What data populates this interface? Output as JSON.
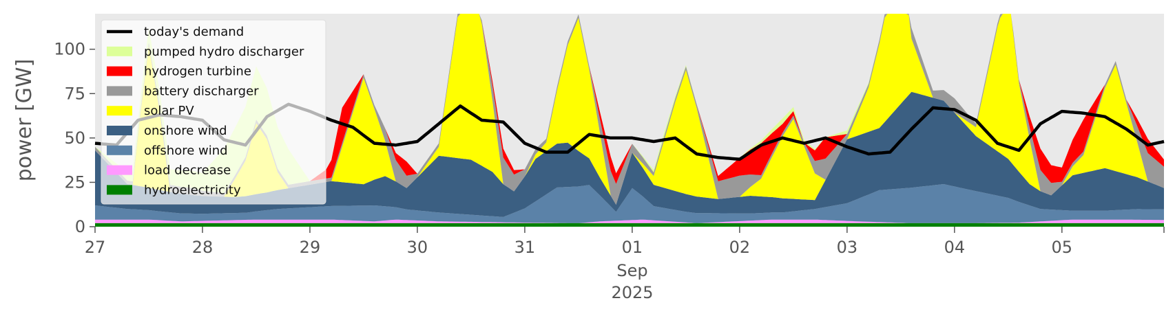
{
  "chart_data": {
    "type": "area",
    "ylabel": "power [GW]",
    "ylim": [
      0,
      120
    ],
    "y_ticks": [
      0,
      25,
      50,
      75,
      100
    ],
    "x_ticks": [
      "27",
      "28",
      "29",
      "30",
      "31",
      "01",
      "02",
      "03",
      "04",
      "05"
    ],
    "x_month_label": "Sep",
    "x_year_label": "2025",
    "x_range_days": [
      0,
      9.95
    ],
    "legend_position": "upper-left",
    "background_color": "#e9e9e9",
    "stacked_series": [
      {
        "name": "hydroelectricity",
        "color": "#008000",
        "x": [
          0,
          9.95
        ],
        "values": [
          2,
          2
        ]
      },
      {
        "name": "load decrease",
        "color": "#ff99ff",
        "x": [
          0,
          0.5,
          0.8,
          1.5,
          2.2,
          2.6,
          2.8,
          3.2,
          4.0,
          4.5,
          4.7,
          5.1,
          5.6,
          6.3,
          6.7,
          7.1,
          7.6,
          8.1,
          8.6,
          9.1,
          9.5,
          9.95
        ],
        "values": [
          2,
          2,
          1,
          2,
          2,
          1,
          2,
          1,
          0.3,
          0,
          1,
          2,
          0,
          2,
          2,
          1,
          0,
          0,
          0.3,
          2,
          2,
          1.8
        ]
      },
      {
        "name": "offshore wind",
        "color": "#5b82a8",
        "x": [
          0,
          0.3,
          0.6,
          1.0,
          1.4,
          1.7,
          2.0,
          2.3,
          2.6,
          2.9,
          3.2,
          3.5,
          3.8,
          4.0,
          4.3,
          4.6,
          4.85,
          5.0,
          5.2,
          5.5,
          5.8,
          6.1,
          6.4,
          6.7,
          7.0,
          7.3,
          7.6,
          7.9,
          8.2,
          8.5,
          8.8,
          9.1,
          9.4,
          9.7,
          9.95
        ],
        "values": [
          8,
          6,
          5,
          4,
          4,
          6,
          7,
          8,
          9,
          6,
          5,
          4,
          3,
          8,
          20,
          21,
          5,
          18,
          8,
          6,
          5,
          4,
          4,
          6,
          10,
          18,
          20,
          22,
          18,
          14,
          7,
          5,
          5,
          6,
          6
        ]
      },
      {
        "name": "onshore wind",
        "color": "#3b5f82",
        "x": [
          0,
          0.3,
          0.6,
          1.0,
          1.3,
          1.6,
          1.9,
          2.2,
          2.5,
          2.7,
          2.9,
          3.2,
          3.5,
          3.7,
          3.9,
          4.1,
          4.4,
          4.7,
          4.85,
          5.0,
          5.2,
          5.5,
          5.8,
          6.1,
          6.4,
          6.7,
          7.0,
          7.3,
          7.6,
          7.9,
          8.2,
          8.5,
          8.7,
          8.9,
          9.1,
          9.4,
          9.7,
          9.95
        ],
        "values": [
          31,
          14,
          12,
          10,
          9,
          10,
          12,
          14,
          12,
          17,
          12,
          32,
          31,
          25,
          12,
          24,
          25,
          10,
          4,
          20,
          12,
          10,
          8,
          10,
          8,
          5,
          36,
          35,
          54,
          47,
          31,
          22,
          12,
          8,
          20,
          24,
          18,
          12
        ]
      },
      {
        "name": "solar PV",
        "color": "#ffff00",
        "x": [
          0,
          0.35,
          0.42,
          0.5,
          0.6,
          0.7,
          0.8,
          1.0,
          1.2,
          1.4,
          1.5,
          1.6,
          1.7,
          1.8,
          2.0,
          2.2,
          2.4,
          2.5,
          2.6,
          2.8,
          3.0,
          3.2,
          3.4,
          3.5,
          3.6,
          3.8,
          4.0,
          4.2,
          4.4,
          4.5,
          4.6,
          4.8,
          5.0,
          5.2,
          5.4,
          5.5,
          5.6,
          5.8,
          6.0,
          6.2,
          6.4,
          6.5,
          6.6,
          6.8,
          7.0,
          7.2,
          7.4,
          7.5,
          7.6,
          7.8,
          8.0,
          8.2,
          8.4,
          8.5,
          8.6,
          8.8,
          9.0,
          9.2,
          9.4,
          9.5,
          9.6,
          9.8,
          9.95
        ],
        "values": [
          0,
          0,
          40,
          80,
          45,
          0,
          0,
          0,
          0,
          20,
          40,
          30,
          10,
          0,
          0,
          0,
          40,
          60,
          40,
          0,
          0,
          5,
          90,
          110,
          80,
          0,
          0,
          5,
          55,
          75,
          50,
          0,
          0,
          5,
          50,
          70,
          50,
          0,
          0,
          10,
          35,
          45,
          30,
          0,
          0,
          25,
          70,
          90,
          30,
          0,
          0,
          5,
          70,
          95,
          50,
          0,
          0,
          10,
          45,
          60,
          40,
          0,
          0
        ]
      },
      {
        "name": "battery discharger",
        "color": "#999999",
        "x": [
          0,
          0.3,
          0.5,
          0.7,
          0.9,
          1.0,
          1.2,
          1.4,
          1.6,
          1.8,
          2.0,
          2.2,
          2.4,
          2.6,
          2.8,
          3.0,
          3.2,
          3.4,
          3.6,
          3.8,
          4.0,
          4.2,
          4.4,
          4.6,
          4.8,
          5.0,
          5.2,
          5.4,
          5.6,
          5.8,
          6.0,
          6.2,
          6.4,
          6.6,
          6.8,
          7.0,
          7.2,
          7.4,
          7.6,
          7.8,
          8.0,
          8.2,
          8.4,
          8.6,
          8.8,
          9.0,
          9.2,
          9.4,
          9.6,
          9.8,
          9.95
        ],
        "values": [
          2,
          2,
          2,
          4,
          4,
          3,
          2,
          2,
          2,
          2,
          2,
          2,
          2,
          2,
          12,
          2,
          2,
          2,
          2,
          15,
          4,
          2,
          2,
          2,
          14,
          5,
          2,
          2,
          2,
          10,
          12,
          2,
          2,
          2,
          12,
          3,
          2,
          2,
          6,
          4,
          8,
          2,
          2,
          2,
          12,
          2,
          2,
          2,
          2,
          16,
          12
        ]
      },
      {
        "name": "hydrogen turbine",
        "color": "#ff0000",
        "x": [
          0,
          0.5,
          1.0,
          1.5,
          2.0,
          2.15,
          2.3,
          2.5,
          2.7,
          2.9,
          3.0,
          3.2,
          3.4,
          3.6,
          3.8,
          4.0,
          4.2,
          4.4,
          4.6,
          4.8,
          5.0,
          5.2,
          5.4,
          5.6,
          5.8,
          6.0,
          6.2,
          6.4,
          6.6,
          6.8,
          7.0,
          7.2,
          7.4,
          7.6,
          7.8,
          8.0,
          8.2,
          8.4,
          8.6,
          8.8,
          9.0,
          9.2,
          9.4,
          9.6,
          9.8,
          9.95
        ],
        "values": [
          0,
          0,
          0,
          0,
          0,
          5,
          20,
          0,
          0,
          8,
          0,
          0,
          0,
          0,
          5,
          0,
          0,
          0,
          0,
          8,
          0,
          0,
          0,
          0,
          3,
          10,
          18,
          5,
          0,
          12,
          0,
          0,
          0,
          0,
          0,
          0,
          0,
          0,
          0,
          12,
          8,
          18,
          0,
          0,
          8,
          4
        ]
      },
      {
        "name": "pumped hydro discharger",
        "color": "#ddff99",
        "x": [
          0,
          0.5,
          1.0,
          1.2,
          1.5,
          1.8,
          2.0,
          2.5,
          3.0,
          3.5,
          4.0,
          4.5,
          5.0,
          5.3,
          5.6,
          6.0,
          6.4,
          6.8,
          7.0,
          7.3,
          7.6,
          8.0,
          8.5,
          9.0,
          9.5,
          9.95
        ],
        "values": [
          0,
          8,
          10,
          25,
          30,
          20,
          0,
          0,
          0,
          0,
          0,
          0,
          0,
          2,
          0,
          0,
          3,
          0,
          2,
          0,
          0,
          0,
          0,
          0,
          0,
          0
        ]
      }
    ],
    "demand_line": {
      "name": "today's demand",
      "color": "#000000",
      "x": [
        0,
        0.2,
        0.4,
        0.6,
        0.8,
        1.0,
        1.2,
        1.4,
        1.6,
        1.8,
        2.0,
        2.2,
        2.4,
        2.6,
        2.8,
        3.0,
        3.2,
        3.4,
        3.6,
        3.8,
        4.0,
        4.2,
        4.4,
        4.6,
        4.8,
        5.0,
        5.2,
        5.4,
        5.6,
        5.8,
        6.0,
        6.2,
        6.4,
        6.6,
        6.8,
        7.0,
        7.2,
        7.4,
        7.6,
        7.8,
        8.0,
        8.2,
        8.4,
        8.6,
        8.8,
        9.0,
        9.2,
        9.4,
        9.6,
        9.8,
        9.95
      ],
      "values": [
        47,
        46,
        60,
        63,
        62,
        60,
        49,
        46,
        62,
        69,
        65,
        60,
        56,
        47,
        46,
        48,
        58,
        68,
        60,
        59,
        47,
        42,
        42,
        52,
        50,
        50,
        48,
        50,
        41,
        39,
        38,
        46,
        50,
        47,
        50,
        45,
        41,
        42,
        55,
        67,
        66,
        60,
        47,
        43,
        58,
        65,
        64,
        62,
        55,
        46,
        48
      ]
    },
    "legend": [
      {
        "label": "today's demand",
        "color": "#000000",
        "kind": "line"
      },
      {
        "label": "pumped hydro discharger",
        "color": "#ddff99",
        "kind": "patch"
      },
      {
        "label": "hydrogen turbine",
        "color": "#ff0000",
        "kind": "patch"
      },
      {
        "label": "battery discharger",
        "color": "#999999",
        "kind": "patch"
      },
      {
        "label": "solar PV",
        "color": "#ffff00",
        "kind": "patch"
      },
      {
        "label": "onshore wind",
        "color": "#3b5f82",
        "kind": "patch"
      },
      {
        "label": "offshore wind",
        "color": "#5b82a8",
        "kind": "patch"
      },
      {
        "label": "load decrease",
        "color": "#ff99ff",
        "kind": "patch"
      },
      {
        "label": "hydroelectricity",
        "color": "#008000",
        "kind": "patch"
      }
    ]
  }
}
